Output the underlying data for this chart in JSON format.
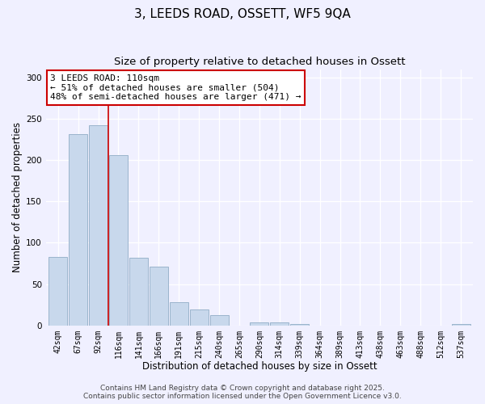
{
  "title": "3, LEEDS ROAD, OSSETT, WF5 9QA",
  "subtitle": "Size of property relative to detached houses in Ossett",
  "xlabel": "Distribution of detached houses by size in Ossett",
  "ylabel": "Number of detached properties",
  "bar_labels": [
    "42sqm",
    "67sqm",
    "92sqm",
    "116sqm",
    "141sqm",
    "166sqm",
    "191sqm",
    "215sqm",
    "240sqm",
    "265sqm",
    "290sqm",
    "314sqm",
    "339sqm",
    "364sqm",
    "389sqm",
    "413sqm",
    "438sqm",
    "463sqm",
    "488sqm",
    "512sqm",
    "537sqm"
  ],
  "bar_values": [
    83,
    231,
    242,
    206,
    82,
    71,
    28,
    19,
    12,
    0,
    4,
    4,
    2,
    0,
    0,
    0,
    0,
    0,
    0,
    0,
    2
  ],
  "bar_color": "#c8d8ec",
  "bar_edge_color": "#9ab4cc",
  "vline_x_index": 2.5,
  "vline_color": "#cc0000",
  "annotation_text_line1": "3 LEEDS ROAD: 110sqm",
  "annotation_text_line2": "← 51% of detached houses are smaller (504)",
  "annotation_text_line3": "48% of semi-detached houses are larger (471) →",
  "ylim": [
    0,
    310
  ],
  "yticks": [
    0,
    50,
    100,
    150,
    200,
    250,
    300
  ],
  "footer_line1": "Contains HM Land Registry data © Crown copyright and database right 2025.",
  "footer_line2": "Contains public sector information licensed under the Open Government Licence v3.0.",
  "background_color": "#f0f0ff",
  "grid_color": "#ffffff",
  "title_fontsize": 11,
  "subtitle_fontsize": 9.5,
  "axis_label_fontsize": 8.5,
  "tick_fontsize": 7,
  "annotation_fontsize": 8,
  "footer_fontsize": 6.5
}
